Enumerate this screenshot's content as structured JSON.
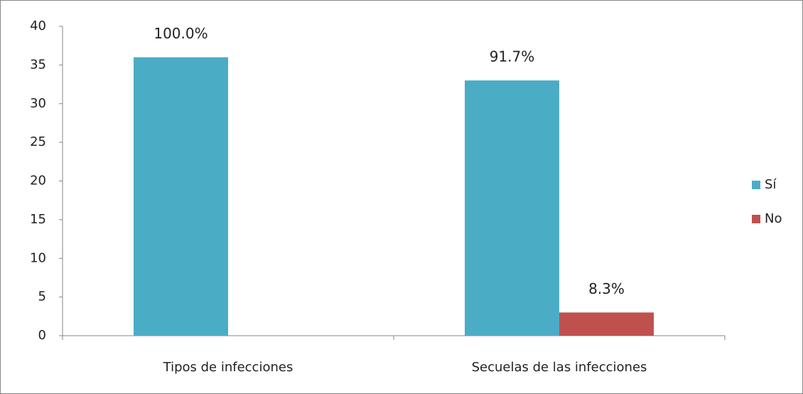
{
  "chart_data": {
    "type": "bar",
    "categories": [
      "Tipos de infecciones",
      "Secuelas de las infecciones"
    ],
    "series": [
      {
        "name": "Sí",
        "color": "#4bacc6",
        "values": [
          36,
          33
        ],
        "percent_labels": [
          "100.0%",
          "91.7%"
        ]
      },
      {
        "name": "No",
        "color": "#c0504d",
        "values": [
          null,
          3
        ],
        "percent_labels": [
          null,
          "8.3%"
        ]
      }
    ],
    "ylim": [
      0,
      40
    ],
    "yticks": [
      0,
      5,
      10,
      15,
      20,
      25,
      30,
      35,
      40
    ],
    "legend": "right"
  }
}
